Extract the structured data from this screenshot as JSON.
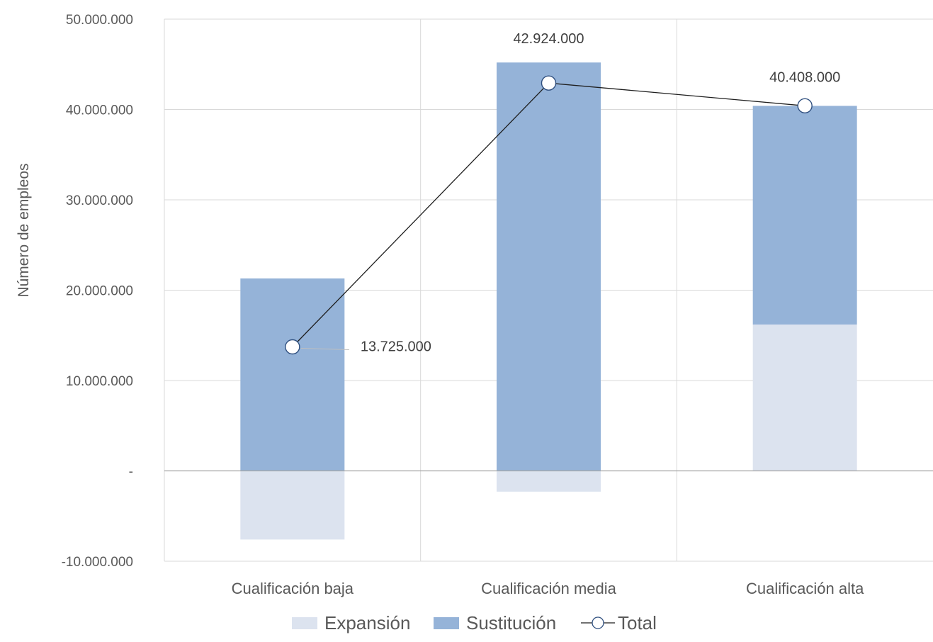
{
  "chart_data": {
    "type": "bar",
    "stacked": true,
    "ylabel": "Número de empleos",
    "xlabel": "",
    "ylim": [
      -10000000,
      50000000
    ],
    "y_ticks": [
      -10000000,
      0,
      10000000,
      20000000,
      30000000,
      40000000,
      50000000
    ],
    "y_tick_labels": [
      "-10.000.000",
      "-",
      "10.000.000",
      "20.000.000",
      "30.000.000",
      "40.000.000",
      "50.000.000"
    ],
    "grid": true,
    "legend_position": "bottom",
    "categories": [
      "Cualificación baja",
      "Cualificación media",
      "Cualificación alta"
    ],
    "series": [
      {
        "name": "Expansión",
        "kind": "bar",
        "color": "#dce3ef",
        "values": [
          -7600000,
          -2300000,
          16200000
        ]
      },
      {
        "name": "Sustitución",
        "kind": "bar",
        "color": "#95b3d8",
        "values": [
          21300000,
          45200000,
          24200000
        ]
      },
      {
        "name": "Total",
        "kind": "line",
        "color": "#1f1f1f",
        "values": [
          13725000,
          42924000,
          40408000
        ],
        "labels": [
          "13.725.000",
          "42.924.000",
          "40.408.000"
        ]
      }
    ]
  }
}
